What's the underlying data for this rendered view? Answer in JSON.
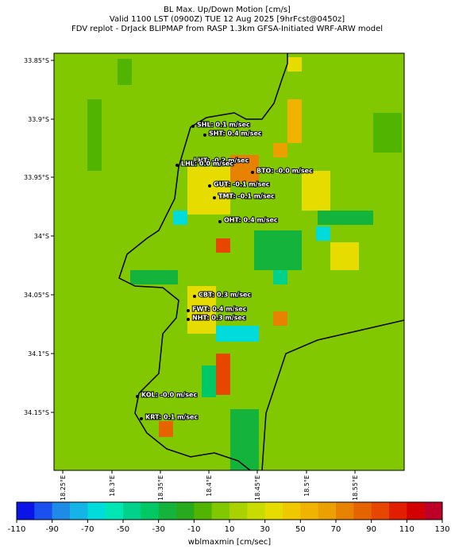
{
  "header": {
    "lines": [
      "BL Max. Up/Down Motion [cm/s]",
      "Valid 1100 LST (0900Z) TUE 12 Aug 2025 [9hrFcst@0450z]",
      "FDV replot - DrJack BLIPMAP from RASP 1.3km GFSA-Initiated WRF-ARW model"
    ]
  },
  "map": {
    "lat_ticks": [
      "33.85°S",
      "33.9°S",
      "33.95°S",
      "34°S",
      "34.05°S",
      "34.1°S",
      "34.15°S"
    ],
    "lon_ticks": [
      "18.25°E",
      "18.3°E",
      "18.35°E",
      "18.4°E",
      "18.45°E",
      "18.5°E",
      "18.55°E"
    ],
    "stations": [
      "SHL: 0.1 m/sec",
      "SHT: 0.4 m/sec",
      "LHT: -0.2 m/sec",
      "LHL: 0.0 m/sec",
      "BTO: -0.0 m/sec",
      "GUT: -0.1 m/sec",
      "TMT: -0.1 m/sec",
      "OHT: 0.4 m/sec",
      "CBT: 0.3 m/sec",
      "FWT: 0.4 m/sec",
      "NHT: 0.3 m/sec",
      "KOL: -0.0 m/sec",
      "KRT: 0.1 m/sec"
    ]
  },
  "colorbar": {
    "label": "wblmaxmin [cm/sec]",
    "range": [
      -110,
      130
    ],
    "ticks": [
      -110,
      -90,
      -70,
      -50,
      -30,
      -10,
      10,
      30,
      50,
      70,
      90,
      110,
      130
    ],
    "colors": [
      "#0a14e6",
      "#1a50f0",
      "#1e8ce6",
      "#14b4e6",
      "#00dcdc",
      "#00e6b4",
      "#00d28c",
      "#00c864",
      "#14b43c",
      "#28aa1e",
      "#50b400",
      "#82c800",
      "#aad200",
      "#c8dc00",
      "#e6dc00",
      "#f0c800",
      "#f0b400",
      "#eba000",
      "#e68200",
      "#e66400",
      "#e64600",
      "#e11e00",
      "#d20000",
      "#be0028"
    ]
  }
}
